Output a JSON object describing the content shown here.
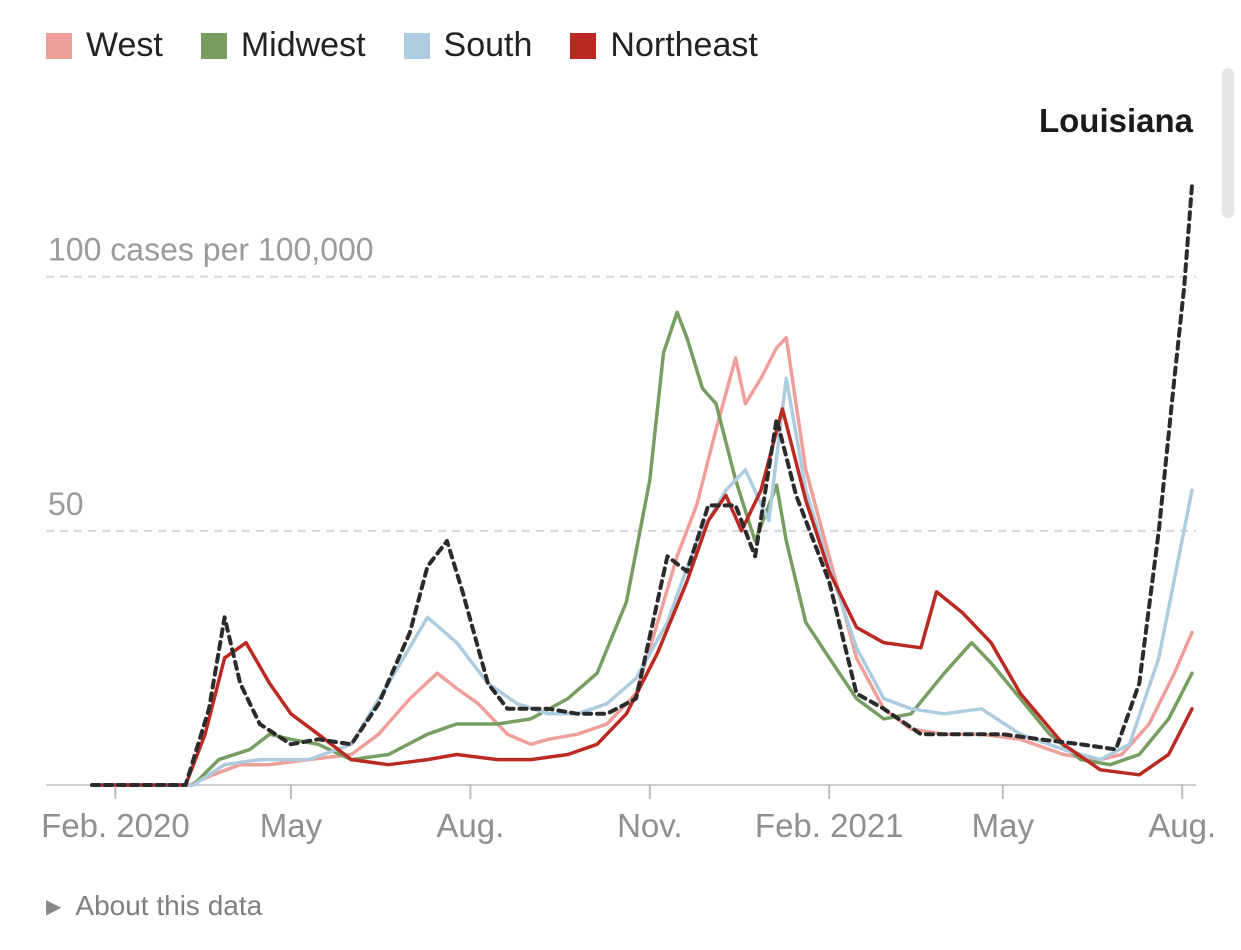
{
  "legend": [
    {
      "label": "West",
      "color": "#ee9f9a"
    },
    {
      "label": "Midwest",
      "color": "#779d60"
    },
    {
      "label": "South",
      "color": "#aecce0"
    },
    {
      "label": "Northeast",
      "color": "#bb2a22"
    }
  ],
  "about": {
    "label": "About this data",
    "icon": "triangle-right-icon"
  },
  "chart_data": {
    "type": "line",
    "title": "Louisiana",
    "y_unit_label": "100 cases per 100,000",
    "ylim": [
      0,
      120
    ],
    "yticks": [
      {
        "value": 100,
        "label": "100 cases per 100,000"
      },
      {
        "value": 50,
        "label": "50"
      }
    ],
    "xlim": [
      "2020-01-20",
      "2021-08-06"
    ],
    "xticks": [
      {
        "date": "2020-02-01",
        "label": "Feb. 2020"
      },
      {
        "date": "2020-05-01",
        "label": "May"
      },
      {
        "date": "2020-08-01",
        "label": "Aug."
      },
      {
        "date": "2020-11-01",
        "label": "Nov."
      },
      {
        "date": "2021-02-01",
        "label": "Feb. 2021"
      },
      {
        "date": "2021-05-01",
        "label": "May"
      },
      {
        "date": "2021-08-01",
        "label": "Aug."
      }
    ],
    "grid": "dashed horizontal at 50 and 100",
    "highlight_series": "Louisiana",
    "series": [
      {
        "name": "West",
        "color": "#ee9f9a",
        "style": "solid",
        "points": [
          [
            "2020-01-20",
            0
          ],
          [
            "2020-03-10",
            0
          ],
          [
            "2020-03-22",
            2
          ],
          [
            "2020-04-05",
            4
          ],
          [
            "2020-04-20",
            4
          ],
          [
            "2020-05-10",
            5
          ],
          [
            "2020-06-01",
            6
          ],
          [
            "2020-06-15",
            10
          ],
          [
            "2020-07-01",
            17
          ],
          [
            "2020-07-15",
            22
          ],
          [
            "2020-07-25",
            19
          ],
          [
            "2020-08-05",
            16
          ],
          [
            "2020-08-20",
            10
          ],
          [
            "2020-09-01",
            8
          ],
          [
            "2020-09-10",
            9
          ],
          [
            "2020-09-25",
            10
          ],
          [
            "2020-10-10",
            12
          ],
          [
            "2020-10-25",
            18
          ],
          [
            "2020-11-05",
            32
          ],
          [
            "2020-11-15",
            45
          ],
          [
            "2020-11-25",
            55
          ],
          [
            "2020-12-05",
            70
          ],
          [
            "2020-12-15",
            84
          ],
          [
            "2020-12-20",
            75
          ],
          [
            "2020-12-28",
            80
          ],
          [
            "2021-01-05",
            86
          ],
          [
            "2021-01-10",
            88
          ],
          [
            "2021-01-20",
            62
          ],
          [
            "2021-02-01",
            45
          ],
          [
            "2021-02-15",
            25
          ],
          [
            "2021-03-01",
            15
          ],
          [
            "2021-03-15",
            11
          ],
          [
            "2021-04-01",
            10
          ],
          [
            "2021-04-20",
            10
          ],
          [
            "2021-05-10",
            9
          ],
          [
            "2021-06-01",
            6
          ],
          [
            "2021-06-20",
            5
          ],
          [
            "2021-07-01",
            6
          ],
          [
            "2021-07-15",
            12
          ],
          [
            "2021-07-28",
            22
          ],
          [
            "2021-08-06",
            30
          ]
        ]
      },
      {
        "name": "Midwest",
        "color": "#779d60",
        "style": "solid",
        "points": [
          [
            "2020-01-20",
            0
          ],
          [
            "2020-03-12",
            0
          ],
          [
            "2020-03-25",
            5
          ],
          [
            "2020-04-10",
            7
          ],
          [
            "2020-04-20",
            10
          ],
          [
            "2020-05-01",
            9
          ],
          [
            "2020-05-15",
            8
          ],
          [
            "2020-06-01",
            5
          ],
          [
            "2020-06-20",
            6
          ],
          [
            "2020-07-10",
            10
          ],
          [
            "2020-07-25",
            12
          ],
          [
            "2020-08-15",
            12
          ],
          [
            "2020-09-01",
            13
          ],
          [
            "2020-09-20",
            17
          ],
          [
            "2020-10-05",
            22
          ],
          [
            "2020-10-20",
            36
          ],
          [
            "2020-11-01",
            60
          ],
          [
            "2020-11-08",
            85
          ],
          [
            "2020-11-15",
            93
          ],
          [
            "2020-11-20",
            88
          ],
          [
            "2020-11-28",
            78
          ],
          [
            "2020-12-05",
            75
          ],
          [
            "2020-12-15",
            60
          ],
          [
            "2020-12-25",
            48
          ],
          [
            "2021-01-05",
            59
          ],
          [
            "2021-01-10",
            48
          ],
          [
            "2021-01-20",
            32
          ],
          [
            "2021-02-01",
            25
          ],
          [
            "2021-02-15",
            17
          ],
          [
            "2021-03-01",
            13
          ],
          [
            "2021-03-15",
            14
          ],
          [
            "2021-04-01",
            22
          ],
          [
            "2021-04-15",
            28
          ],
          [
            "2021-04-25",
            24
          ],
          [
            "2021-05-10",
            17
          ],
          [
            "2021-05-25",
            10
          ],
          [
            "2021-06-10",
            5
          ],
          [
            "2021-06-25",
            4
          ],
          [
            "2021-07-10",
            6
          ],
          [
            "2021-07-25",
            13
          ],
          [
            "2021-08-06",
            22
          ]
        ]
      },
      {
        "name": "South",
        "color": "#aecce0",
        "style": "solid",
        "points": [
          [
            "2020-01-20",
            0
          ],
          [
            "2020-03-12",
            0
          ],
          [
            "2020-03-28",
            4
          ],
          [
            "2020-04-15",
            5
          ],
          [
            "2020-05-10",
            5
          ],
          [
            "2020-06-01",
            8
          ],
          [
            "2020-06-20",
            20
          ],
          [
            "2020-07-10",
            33
          ],
          [
            "2020-07-25",
            28
          ],
          [
            "2020-08-10",
            20
          ],
          [
            "2020-08-25",
            16
          ],
          [
            "2020-09-10",
            14
          ],
          [
            "2020-09-25",
            14
          ],
          [
            "2020-10-10",
            16
          ],
          [
            "2020-10-25",
            21
          ],
          [
            "2020-11-10",
            32
          ],
          [
            "2020-11-25",
            48
          ],
          [
            "2020-12-10",
            58
          ],
          [
            "2020-12-20",
            62
          ],
          [
            "2021-01-01",
            52
          ],
          [
            "2021-01-10",
            80
          ],
          [
            "2021-01-20",
            58
          ],
          [
            "2021-02-01",
            43
          ],
          [
            "2021-02-15",
            27
          ],
          [
            "2021-03-01",
            17
          ],
          [
            "2021-03-15",
            15
          ],
          [
            "2021-04-01",
            14
          ],
          [
            "2021-04-20",
            15
          ],
          [
            "2021-05-10",
            10
          ],
          [
            "2021-06-01",
            7
          ],
          [
            "2021-06-20",
            5
          ],
          [
            "2021-07-05",
            8
          ],
          [
            "2021-07-20",
            25
          ],
          [
            "2021-08-06",
            58
          ]
        ]
      },
      {
        "name": "Northeast",
        "color": "#bb2a22",
        "style": "solid",
        "points": [
          [
            "2020-01-20",
            0
          ],
          [
            "2020-03-08",
            0
          ],
          [
            "2020-03-18",
            10
          ],
          [
            "2020-03-28",
            25
          ],
          [
            "2020-04-08",
            28
          ],
          [
            "2020-04-20",
            20
          ],
          [
            "2020-05-01",
            14
          ],
          [
            "2020-05-15",
            10
          ],
          [
            "2020-06-01",
            5
          ],
          [
            "2020-06-20",
            4
          ],
          [
            "2020-07-10",
            5
          ],
          [
            "2020-07-25",
            6
          ],
          [
            "2020-08-15",
            5
          ],
          [
            "2020-09-01",
            5
          ],
          [
            "2020-09-20",
            6
          ],
          [
            "2020-10-05",
            8
          ],
          [
            "2020-10-20",
            14
          ],
          [
            "2020-11-05",
            26
          ],
          [
            "2020-11-20",
            40
          ],
          [
            "2020-12-01",
            52
          ],
          [
            "2020-12-10",
            57
          ],
          [
            "2020-12-18",
            50
          ],
          [
            "2020-12-28",
            58
          ],
          [
            "2021-01-08",
            74
          ],
          [
            "2021-01-20",
            56
          ],
          [
            "2021-02-01",
            42
          ],
          [
            "2021-02-15",
            31
          ],
          [
            "2021-03-01",
            28
          ],
          [
            "2021-03-20",
            27
          ],
          [
            "2021-03-28",
            38
          ],
          [
            "2021-04-10",
            34
          ],
          [
            "2021-04-25",
            28
          ],
          [
            "2021-05-10",
            18
          ],
          [
            "2021-06-01",
            8
          ],
          [
            "2021-06-20",
            3
          ],
          [
            "2021-07-10",
            2
          ],
          [
            "2021-07-25",
            6
          ],
          [
            "2021-08-06",
            15
          ]
        ]
      },
      {
        "name": "Louisiana",
        "color": "#2b2b2b",
        "style": "dashed",
        "points": [
          [
            "2020-01-20",
            0
          ],
          [
            "2020-03-08",
            0
          ],
          [
            "2020-03-20",
            15
          ],
          [
            "2020-03-28",
            33
          ],
          [
            "2020-04-05",
            20
          ],
          [
            "2020-04-15",
            12
          ],
          [
            "2020-05-01",
            8
          ],
          [
            "2020-05-15",
            9
          ],
          [
            "2020-06-01",
            8
          ],
          [
            "2020-06-15",
            16
          ],
          [
            "2020-07-01",
            30
          ],
          [
            "2020-07-10",
            43
          ],
          [
            "2020-07-20",
            48
          ],
          [
            "2020-07-28",
            38
          ],
          [
            "2020-08-10",
            20
          ],
          [
            "2020-08-20",
            15
          ],
          [
            "2020-09-10",
            15
          ],
          [
            "2020-09-25",
            14
          ],
          [
            "2020-10-10",
            14
          ],
          [
            "2020-10-25",
            17
          ],
          [
            "2020-11-10",
            45
          ],
          [
            "2020-11-20",
            42
          ],
          [
            "2020-12-01",
            55
          ],
          [
            "2020-12-15",
            55
          ],
          [
            "2020-12-25",
            45
          ],
          [
            "2021-01-05",
            72
          ],
          [
            "2021-01-15",
            57
          ],
          [
            "2021-02-01",
            40
          ],
          [
            "2021-02-15",
            18
          ],
          [
            "2021-03-01",
            15
          ],
          [
            "2021-03-20",
            10
          ],
          [
            "2021-04-10",
            10
          ],
          [
            "2021-05-01",
            10
          ],
          [
            "2021-05-20",
            9
          ],
          [
            "2021-06-10",
            8
          ],
          [
            "2021-06-28",
            7
          ],
          [
            "2021-07-10",
            20
          ],
          [
            "2021-07-20",
            50
          ],
          [
            "2021-07-28",
            80
          ],
          [
            "2021-08-02",
            98
          ],
          [
            "2021-08-06",
            118
          ]
        ]
      }
    ]
  }
}
